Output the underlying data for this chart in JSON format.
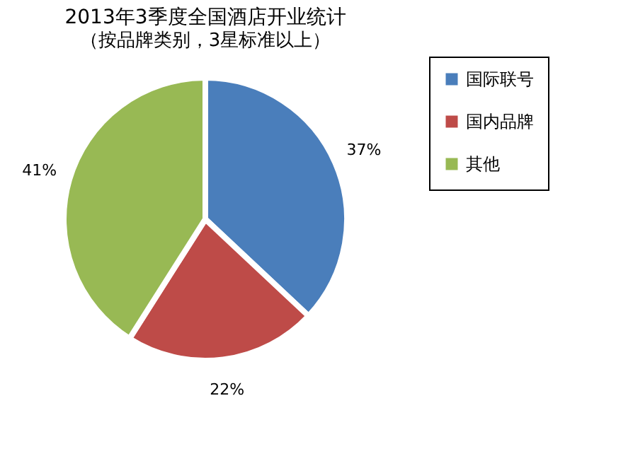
{
  "chart_data": {
    "type": "pie",
    "title": "2013年3季度全国酒店开业统计",
    "subtitle": "（按品牌类别，3星标准以上）",
    "categories": [
      "国际联号",
      "国内品牌",
      "其他"
    ],
    "values": [
      37,
      22,
      41
    ],
    "colors": [
      "#4a7ebb",
      "#be4b48",
      "#98b954"
    ],
    "value_labels": [
      "37%",
      "22%",
      "41%"
    ],
    "legend": "right"
  }
}
